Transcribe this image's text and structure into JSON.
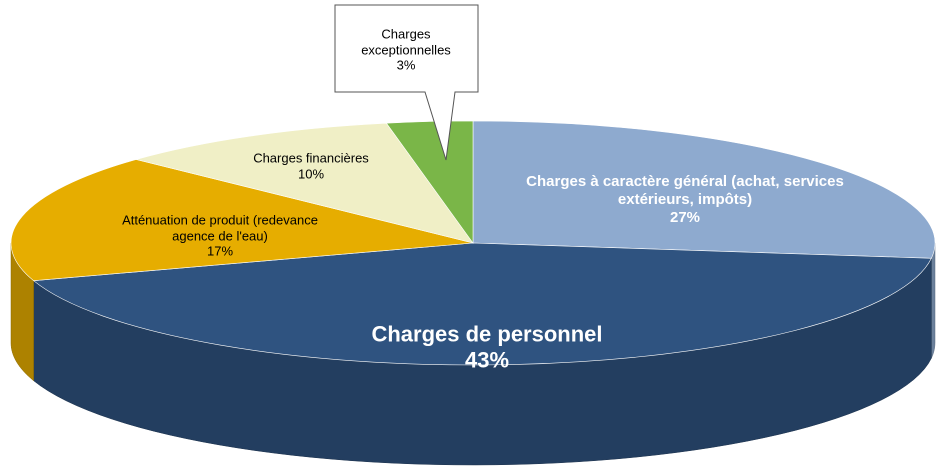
{
  "chart_data": {
    "type": "pie",
    "categories": [
      "Charges à caractère général (achat, services extérieurs, impôts)",
      "Charges de personnel",
      "Atténuation de produit (redevance agence de l'eau)",
      "Charges financières",
      "Charges exceptionnelles"
    ],
    "values": [
      27,
      43,
      17,
      10,
      3
    ],
    "value_labels": [
      "27%",
      "43%",
      "17%",
      "10%",
      "3%"
    ],
    "colors": [
      "#8eaacf",
      "#2f5380",
      "#e6ad00",
      "#f0efc6",
      "#7ab648"
    ]
  }
}
